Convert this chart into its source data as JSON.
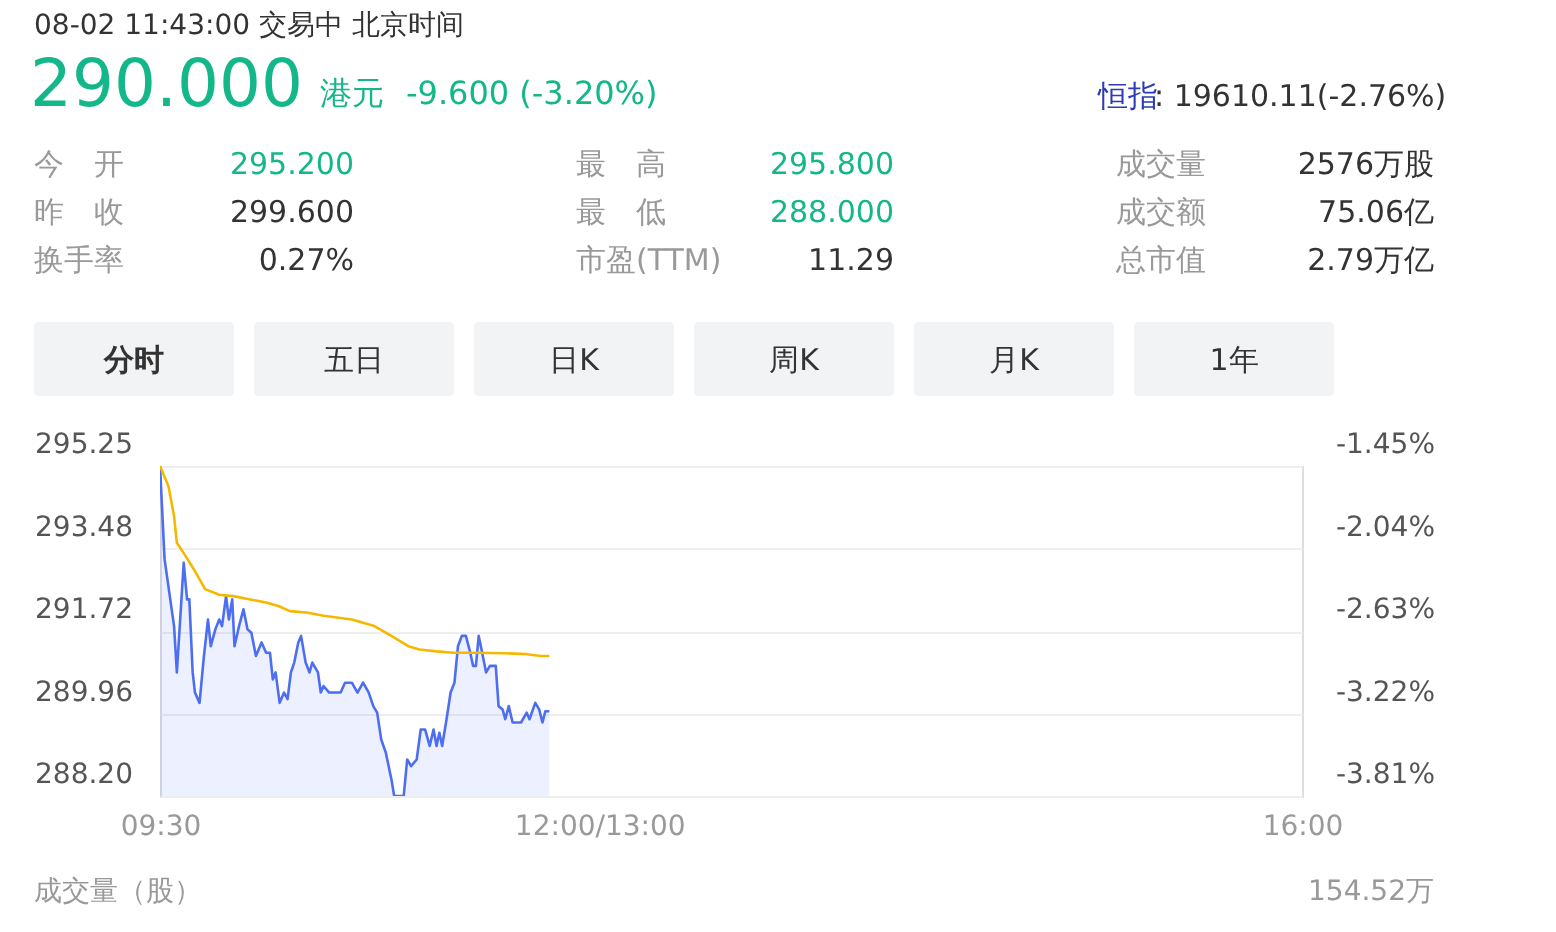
{
  "chart_data": {
    "type": "line",
    "title": "08-02 11:43:00  交易中  北京时间",
    "annotations": [
      "290.000",
      "港元",
      "-9.600 (-3.20%)",
      "恒指",
      ": 19610.11(-2.76%)",
      "今　开",
      "295.200",
      "昨　收",
      "299.600",
      "换手率",
      "0.27%",
      "最　高",
      "295.800",
      "最　低",
      "288.000",
      "市盈(TTM)",
      "11.29",
      "成交量",
      "2576万股",
      "成交额",
      "75.06亿",
      "总市值",
      "2.79万亿",
      "分时",
      "五日",
      "日K",
      "周K",
      "月K",
      "1年",
      "成交量（股）",
      "154.52万"
    ],
    "xlim": [
      9.5,
      16
    ],
    "xticks": [
      {
        "value": 9.5,
        "label": "09:30"
      },
      {
        "value": 12,
        "label": "12:00/13:00"
      },
      {
        "value": 16,
        "label": "16:00"
      }
    ],
    "ylim": [
      288.2,
      295.25
    ],
    "yticks": [
      {
        "value": 288.2,
        "label": "288.20"
      },
      289.96,
      291.72,
      293.48,
      295.25
    ],
    "y2lim": [
      -3.81,
      -1.45
    ],
    "y2ticks": [
      {
        "value": -3.81,
        "label": "-3.81%"
      },
      {
        "value": -3.22,
        "label": "-3.22%"
      },
      {
        "value": -2.63,
        "label": "-2.63%"
      },
      {
        "value": -2.04,
        "label": "-2.04%"
      },
      {
        "value": -1.45,
        "label": "-1.45%"
      }
    ],
    "grid": "y",
    "series": [
      {
        "type": "area",
        "color": "#4e6ef2",
        "x": [
          9.5,
          9.526,
          9.58,
          9.596,
          9.622,
          9.635,
          9.654,
          9.667,
          9.686,
          9.699,
          9.725,
          9.75,
          9.773,
          9.789,
          9.815,
          9.837,
          9.853,
          9.876,
          9.892,
          9.911,
          9.924,
          9.95,
          9.975,
          9.998,
          10.02,
          10.046,
          10.078,
          10.104,
          10.126,
          10.142,
          10.158,
          10.181,
          10.206,
          10.226,
          10.245,
          10.264,
          10.287,
          10.303,
          10.329,
          10.351,
          10.367,
          10.399,
          10.415,
          10.431,
          10.463,
          10.528,
          10.553,
          10.592,
          10.624,
          10.656,
          10.688,
          10.714,
          10.736,
          10.759,
          10.785,
          10.817,
          10.833,
          10.887,
          10.907,
          10.929,
          10.961,
          10.984,
          11.009,
          11.035,
          11.057,
          11.074,
          11.09,
          11.106,
          11.131,
          11.154,
          11.176,
          11.196,
          11.218,
          11.241,
          11.266,
          11.282,
          11.298,
          11.314,
          11.33,
          11.356,
          11.378,
          11.411,
          11.427,
          11.45,
          11.465,
          11.485,
          11.507,
          11.555,
          11.587,
          11.603,
          11.636,
          11.658,
          11.677,
          11.693,
          11.716
        ],
        "values": [
          295.25,
          293.26,
          291.83,
          290.84,
          292.4,
          293.18,
          292.4,
          292.4,
          290.84,
          290.41,
          290.19,
          291.19,
          291.97,
          291.4,
          291.76,
          291.97,
          291.83,
          292.47,
          291.97,
          292.4,
          291.4,
          291.83,
          292.19,
          291.76,
          291.69,
          291.19,
          291.48,
          291.26,
          291.26,
          290.69,
          290.84,
          290.19,
          290.41,
          290.27,
          290.84,
          291.05,
          291.48,
          291.62,
          291.05,
          290.84,
          291.05,
          290.84,
          290.41,
          290.55,
          290.41,
          290.41,
          290.62,
          290.62,
          290.41,
          290.62,
          290.41,
          290.12,
          289.98,
          289.41,
          289.13,
          288.56,
          288.2,
          288.2,
          288.98,
          288.84,
          288.98,
          289.62,
          289.62,
          289.27,
          289.62,
          289.27,
          289.55,
          289.27,
          289.84,
          290.41,
          290.62,
          291.4,
          291.62,
          291.62,
          291.26,
          290.98,
          290.98,
          291.62,
          291.33,
          290.84,
          290.98,
          290.98,
          290.12,
          290.05,
          289.84,
          290.12,
          289.77,
          289.77,
          289.98,
          289.84,
          290.19,
          290.05,
          289.77,
          290.01,
          290.01
        ]
      },
      {
        "type": "line",
        "color": "#f5b800",
        "x": [
          9.5,
          9.548,
          9.58,
          9.596,
          9.645,
          9.693,
          9.757,
          9.837,
          9.917,
          10.014,
          10.11,
          10.174,
          10.239,
          10.335,
          10.431,
          10.592,
          10.72,
          10.817,
          10.913,
          10.977,
          11.074,
          11.17,
          11.298,
          11.459,
          11.587,
          11.668,
          11.716
        ],
        "values": [
          295.25,
          294.82,
          294.18,
          293.61,
          293.33,
          293.04,
          292.62,
          292.5,
          292.47,
          292.4,
          292.33,
          292.26,
          292.15,
          292.12,
          292.05,
          291.97,
          291.83,
          291.62,
          291.4,
          291.33,
          291.29,
          291.26,
          291.26,
          291.25,
          291.23,
          291.19,
          291.19
        ]
      }
    ]
  }
}
